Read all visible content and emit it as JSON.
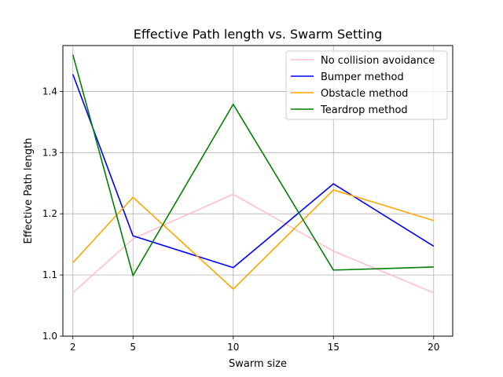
{
  "chart_data": {
    "type": "line",
    "title": "Effective Path length vs. Swarm Setting",
    "xlabel": "Swarm size",
    "ylabel": "Effective Path length",
    "x": [
      2,
      5,
      10,
      15,
      20
    ],
    "x_ticks": [
      "2",
      "5",
      "10",
      "15",
      "20"
    ],
    "y_ticks": [
      "1.0",
      "1.1",
      "1.2",
      "1.3",
      "1.4"
    ],
    "xlim": [
      1.5,
      20.95
    ],
    "ylim": [
      1.0,
      1.475
    ],
    "grid": true,
    "legend_position": "top-right",
    "series": [
      {
        "name": "No collision avoidance",
        "color": "#ffc0cb",
        "values": [
          1.071,
          1.159,
          1.232,
          1.139,
          1.071
        ]
      },
      {
        "name": "Bumper method",
        "color": "#0000ff",
        "values": [
          1.428,
          1.164,
          1.112,
          1.249,
          1.147
        ]
      },
      {
        "name": "Obstacle method",
        "color": "#ffa500",
        "values": [
          1.12,
          1.227,
          1.077,
          1.239,
          1.189
        ]
      },
      {
        "name": "Teardrop method",
        "color": "#008000",
        "values": [
          1.46,
          1.099,
          1.379,
          1.108,
          1.113
        ]
      }
    ]
  }
}
